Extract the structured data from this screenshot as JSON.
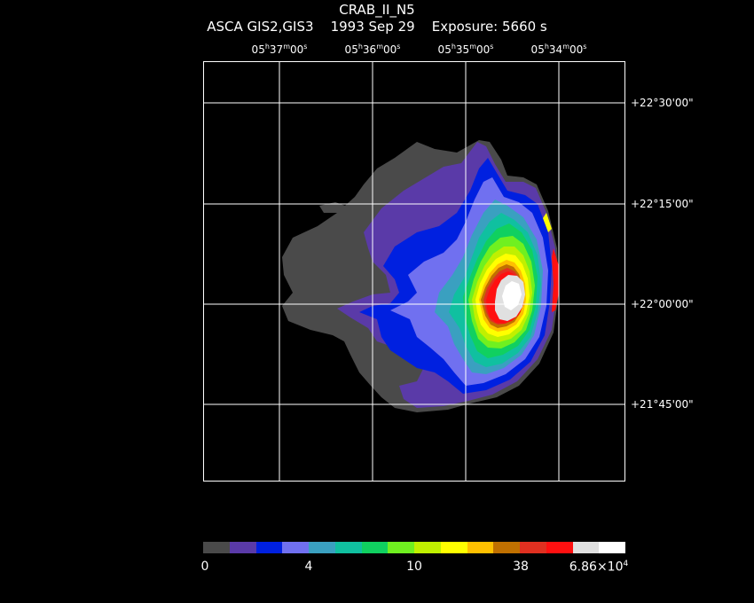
{
  "title": "CRAB_II_N5",
  "subtitle": "ASCA GIS2,GIS3    1993 Sep 29    Exposure: 5660 s",
  "ra_ticks": [
    {
      "h": "05",
      "m": "37",
      "s": "00"
    },
    {
      "h": "05",
      "m": "36",
      "s": "00"
    },
    {
      "h": "05",
      "m": "35",
      "s": "00"
    },
    {
      "h": "05",
      "m": "34",
      "s": "00"
    }
  ],
  "dec_ticks": [
    "+22°30'00\"",
    "+22°15'00\"",
    "+22°00'00\"",
    "+21°45'00\""
  ],
  "colorbar": {
    "colors": [
      "#4a4a4a",
      "#5a3aa8",
      "#0020e0",
      "#7070f0",
      "#3aa0c0",
      "#10c0a0",
      "#10d060",
      "#70f020",
      "#c0f000",
      "#ffff00",
      "#ffc000",
      "#c07000",
      "#e03020",
      "#ff1010",
      "#e0e0e0",
      "#ffffff"
    ],
    "labels": [
      "0",
      "4",
      "10",
      "38"
    ],
    "max_label_mantissa": "6.86×10",
    "max_label_exp": "4"
  }
}
